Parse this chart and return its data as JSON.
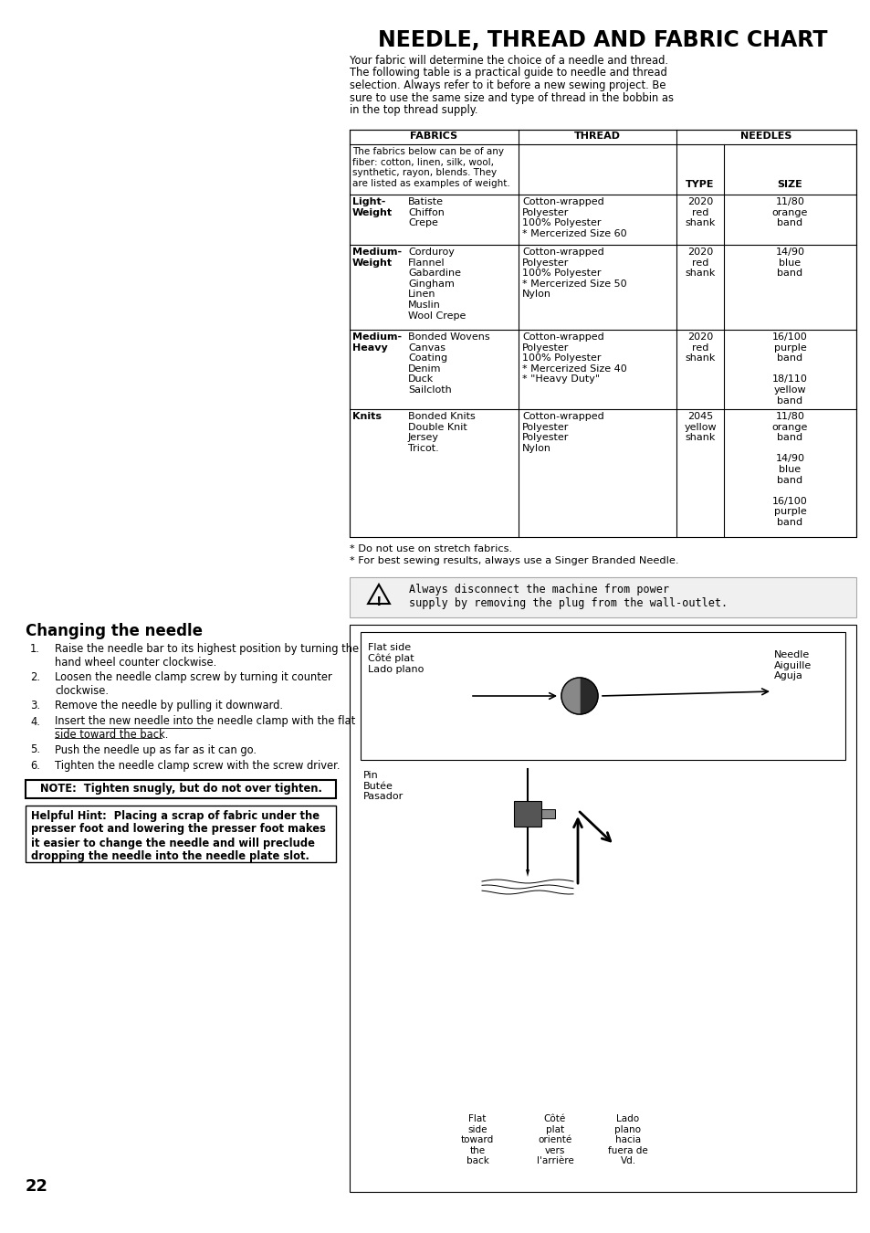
{
  "title": "NEEDLE, THREAD AND FABRIC CHART",
  "intro_lines": [
    "Your fabric will determine the choice of a needle and thread.",
    "The following table is a practical guide to needle and thread",
    "selection. Always refer to it before a new sewing project. Be",
    "sure to use the same size and type of thread in the bobbin as",
    "in the top thread supply."
  ],
  "table_note": "The fabrics below can be of any\nfiber: cotton, linen, silk, wool,\nsynthetic, rayon, blends. They\nare listed as examples of weight.",
  "table_rows": [
    {
      "weight": "Light-\nWeight",
      "fabrics": "Batiste\nChiffon\nCrepe",
      "thread": "Cotton-wrapped\nPolyester\n100% Polyester\n* Mercerized Size 60",
      "type": "2020\nred\nshank",
      "size": "11/80\norange\nband"
    },
    {
      "weight": "Medium-\nWeight",
      "fabrics": "Corduroy\nFlannel\nGabardine\nGingham\nLinen\nMuslin\nWool Crepe",
      "thread": "Cotton-wrapped\nPolyester\n100% Polyester\n* Mercerized Size 50\nNylon",
      "type": "2020\nred\nshank",
      "size": "14/90\nblue\nband"
    },
    {
      "weight": "Medium-\nHeavy",
      "fabrics": "Bonded Wovens\nCanvas\nCoating\nDenim\nDuck\nSailcloth",
      "thread": "Cotton-wrapped\nPolyester\n100% Polyester\n* Mercerized Size 40\n* \"Heavy Duty\"",
      "type": "2020\nred\nshank",
      "size": "16/100\npurple\nband\n\n18/110\nyellow\nband"
    },
    {
      "weight": "Knits",
      "fabrics": "Bonded Knits\nDouble Knit\nJersey\nTricot.",
      "thread": "Cotton-wrapped\nPolyester\nPolyester\nNylon",
      "type": "2045\nyellow\nshank",
      "size": "11/80\norange\nband\n\n14/90\nblue\nband\n\n16/100\npurple\nband"
    }
  ],
  "footnotes": [
    "* Do not use on stretch fabrics.",
    "* For best sewing results, always use a Singer Branded Needle."
  ],
  "warning_text": "Always disconnect the machine from power\nsupply by removing the plug from the wall-outlet.",
  "changing_needle_title": "Changing the needle",
  "steps": [
    [
      "Raise the needle bar to its highest position by turning the",
      "hand wheel counter clockwise."
    ],
    [
      "Loosen the needle clamp screw by turning it counter",
      "clockwise."
    ],
    [
      "Remove the needle by pulling it downward."
    ],
    [
      "Insert the new needle into the needle clamp with the ",
      "flat",
      "side toward the back."
    ],
    [
      "Push the needle up as far as it can go."
    ],
    [
      "Tighten the needle clamp screw with the screw driver."
    ]
  ],
  "note_text": "NOTE:  Tighten snugly, but do not over tighten.",
  "hint_text": "Helpful Hint:  Placing a scrap of fabric under the\npresser foot and lowering the presser foot makes\nit easier to change the needle and will preclude\ndropping the needle into the needle plate slot.",
  "page_number": "22",
  "bg_color": "#ffffff"
}
